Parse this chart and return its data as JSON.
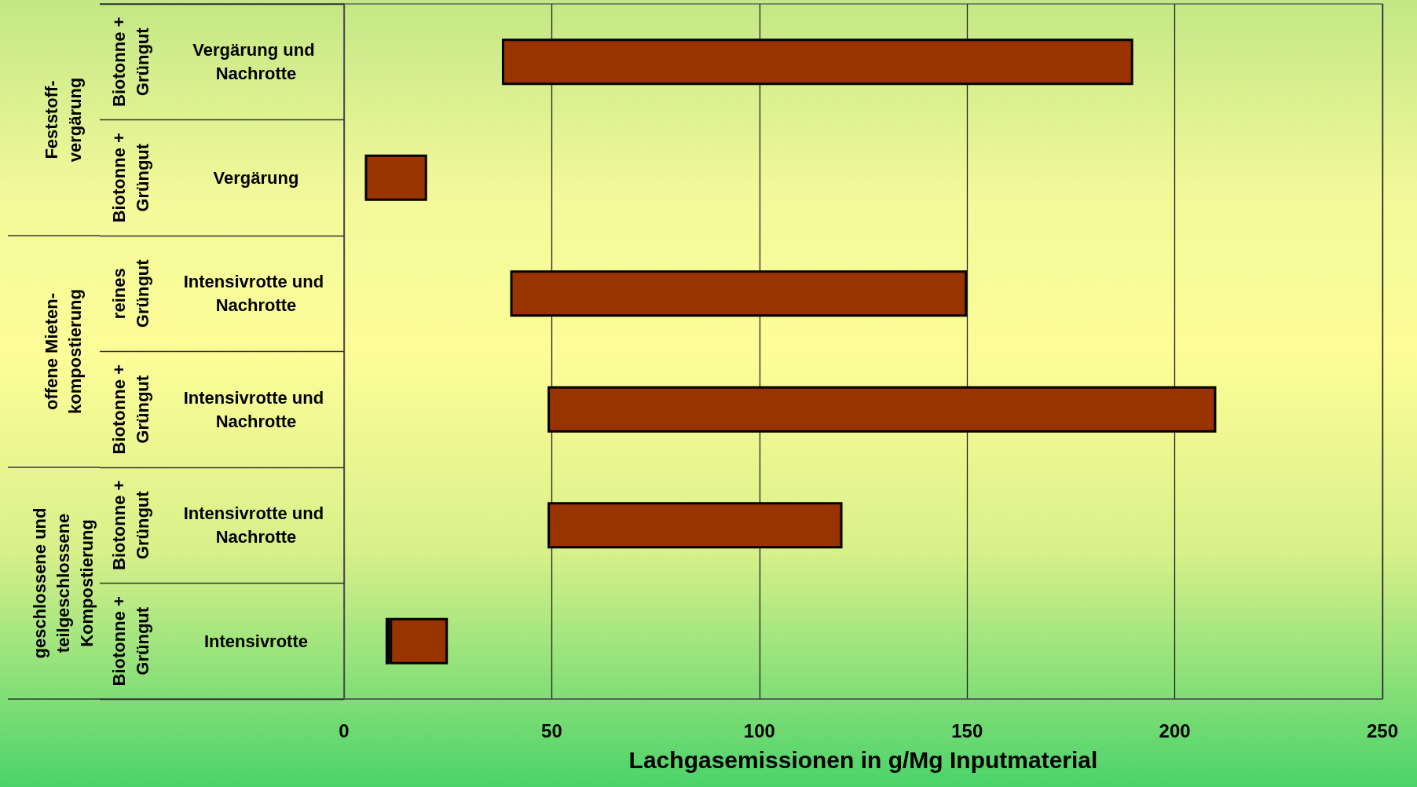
{
  "chart_data": {
    "type": "bar",
    "orientation": "horizontal",
    "xlabel": "Lachgasemissionen in g/Mg Inputmaterial",
    "categories": [
      "Vergärung und Nachrotte",
      "Vergärung",
      "Intensivrotte und Nachrotte",
      "Intensivrotte und Nachrotte",
      "Intensivrotte und Nachrotte",
      "Intensivrotte"
    ],
    "series": [
      {
        "color": "#993300",
        "base": [
          38,
          5,
          40,
          49,
          49,
          11
        ],
        "values": [
          152,
          15,
          110,
          161,
          71,
          14
        ]
      },
      {
        "color": "#993366",
        "base": [
          null,
          null,
          null,
          null,
          null,
          10
        ],
        "values": [
          null,
          null,
          null,
          null,
          null,
          1
        ]
      }
    ],
    "xlim": [
      0,
      250
    ],
    "xticks": [
      0,
      50,
      100,
      150,
      200,
      250
    ],
    "grid": "x",
    "annotations": [
      "Biotonne +\nGrüngut",
      "Biotonne +\nGrüngut",
      "reines\nGrüngut",
      "Biotonne +\nGrüngut",
      "Biotonne +\nGrüngut",
      "Biotonne +\nGrüngut",
      "Feststoff-\nvergärung",
      "offene Mieten-\nkompostierung",
      "geschlossene und\nteilgeschlossene\nKompostierung"
    ]
  }
}
